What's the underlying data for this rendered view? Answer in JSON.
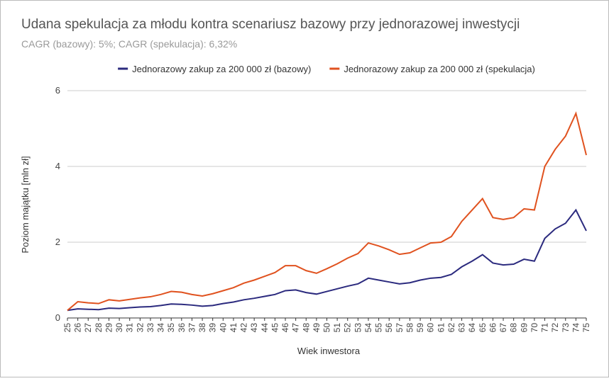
{
  "chart_data": {
    "type": "line",
    "title": "Udana spekulacja za młodu kontra scenariusz bazowy przy jednorazowej inwestycji",
    "subtitle": "CAGR (bazowy): 5%; CAGR (spekulacja): 6,32%",
    "x_label": "Wiek inwestora",
    "y_label": "Poziom majątku [mln zł]",
    "x": [
      25,
      26,
      27,
      28,
      29,
      30,
      31,
      32,
      33,
      34,
      35,
      36,
      37,
      38,
      39,
      40,
      41,
      42,
      43,
      44,
      45,
      46,
      47,
      48,
      49,
      50,
      51,
      52,
      53,
      54,
      55,
      56,
      57,
      58,
      59,
      60,
      61,
      62,
      63,
      64,
      65,
      66,
      67,
      68,
      69,
      70,
      71,
      72,
      73,
      74,
      75
    ],
    "series": [
      {
        "name": "Jednorazowy zakup za 200 000 zł (bazowy)",
        "color": "#2b2a7e",
        "values": [
          0.2,
          0.24,
          0.23,
          0.22,
          0.26,
          0.25,
          0.27,
          0.29,
          0.3,
          0.33,
          0.37,
          0.36,
          0.34,
          0.31,
          0.33,
          0.38,
          0.42,
          0.48,
          0.52,
          0.57,
          0.62,
          0.72,
          0.74,
          0.67,
          0.63,
          0.7,
          0.77,
          0.84,
          0.9,
          1.05,
          1.0,
          0.95,
          0.9,
          0.93,
          1.0,
          1.05,
          1.07,
          1.15,
          1.35,
          1.5,
          1.67,
          1.45,
          1.4,
          1.42,
          1.55,
          1.5,
          2.1,
          2.35,
          2.5,
          2.85,
          2.3
        ]
      },
      {
        "name": "Jednorazowy zakup za 200 000 zł (spekulacja)",
        "color": "#e0521f",
        "values": [
          0.2,
          0.43,
          0.4,
          0.38,
          0.48,
          0.45,
          0.49,
          0.53,
          0.56,
          0.62,
          0.7,
          0.68,
          0.62,
          0.58,
          0.64,
          0.72,
          0.8,
          0.92,
          1.0,
          1.1,
          1.2,
          1.38,
          1.38,
          1.25,
          1.18,
          1.3,
          1.43,
          1.58,
          1.7,
          1.98,
          1.9,
          1.8,
          1.68,
          1.72,
          1.85,
          1.98,
          2.0,
          2.15,
          2.55,
          2.85,
          3.15,
          2.65,
          2.6,
          2.65,
          2.88,
          2.85,
          4.0,
          4.45,
          4.8,
          5.4,
          4.3
        ]
      }
    ],
    "xlim": [
      25,
      75
    ],
    "xticks": [
      25,
      26,
      27,
      28,
      29,
      30,
      31,
      32,
      33,
      34,
      35,
      36,
      37,
      38,
      39,
      40,
      41,
      42,
      43,
      44,
      45,
      46,
      47,
      48,
      49,
      50,
      51,
      52,
      53,
      54,
      55,
      56,
      57,
      58,
      59,
      60,
      61,
      62,
      63,
      64,
      65,
      66,
      67,
      68,
      69,
      70,
      71,
      72,
      73,
      74,
      75
    ],
    "ylim": [
      0,
      6
    ],
    "yticks": [
      0,
      2,
      4,
      6
    ],
    "grid": true,
    "legend": "top"
  }
}
